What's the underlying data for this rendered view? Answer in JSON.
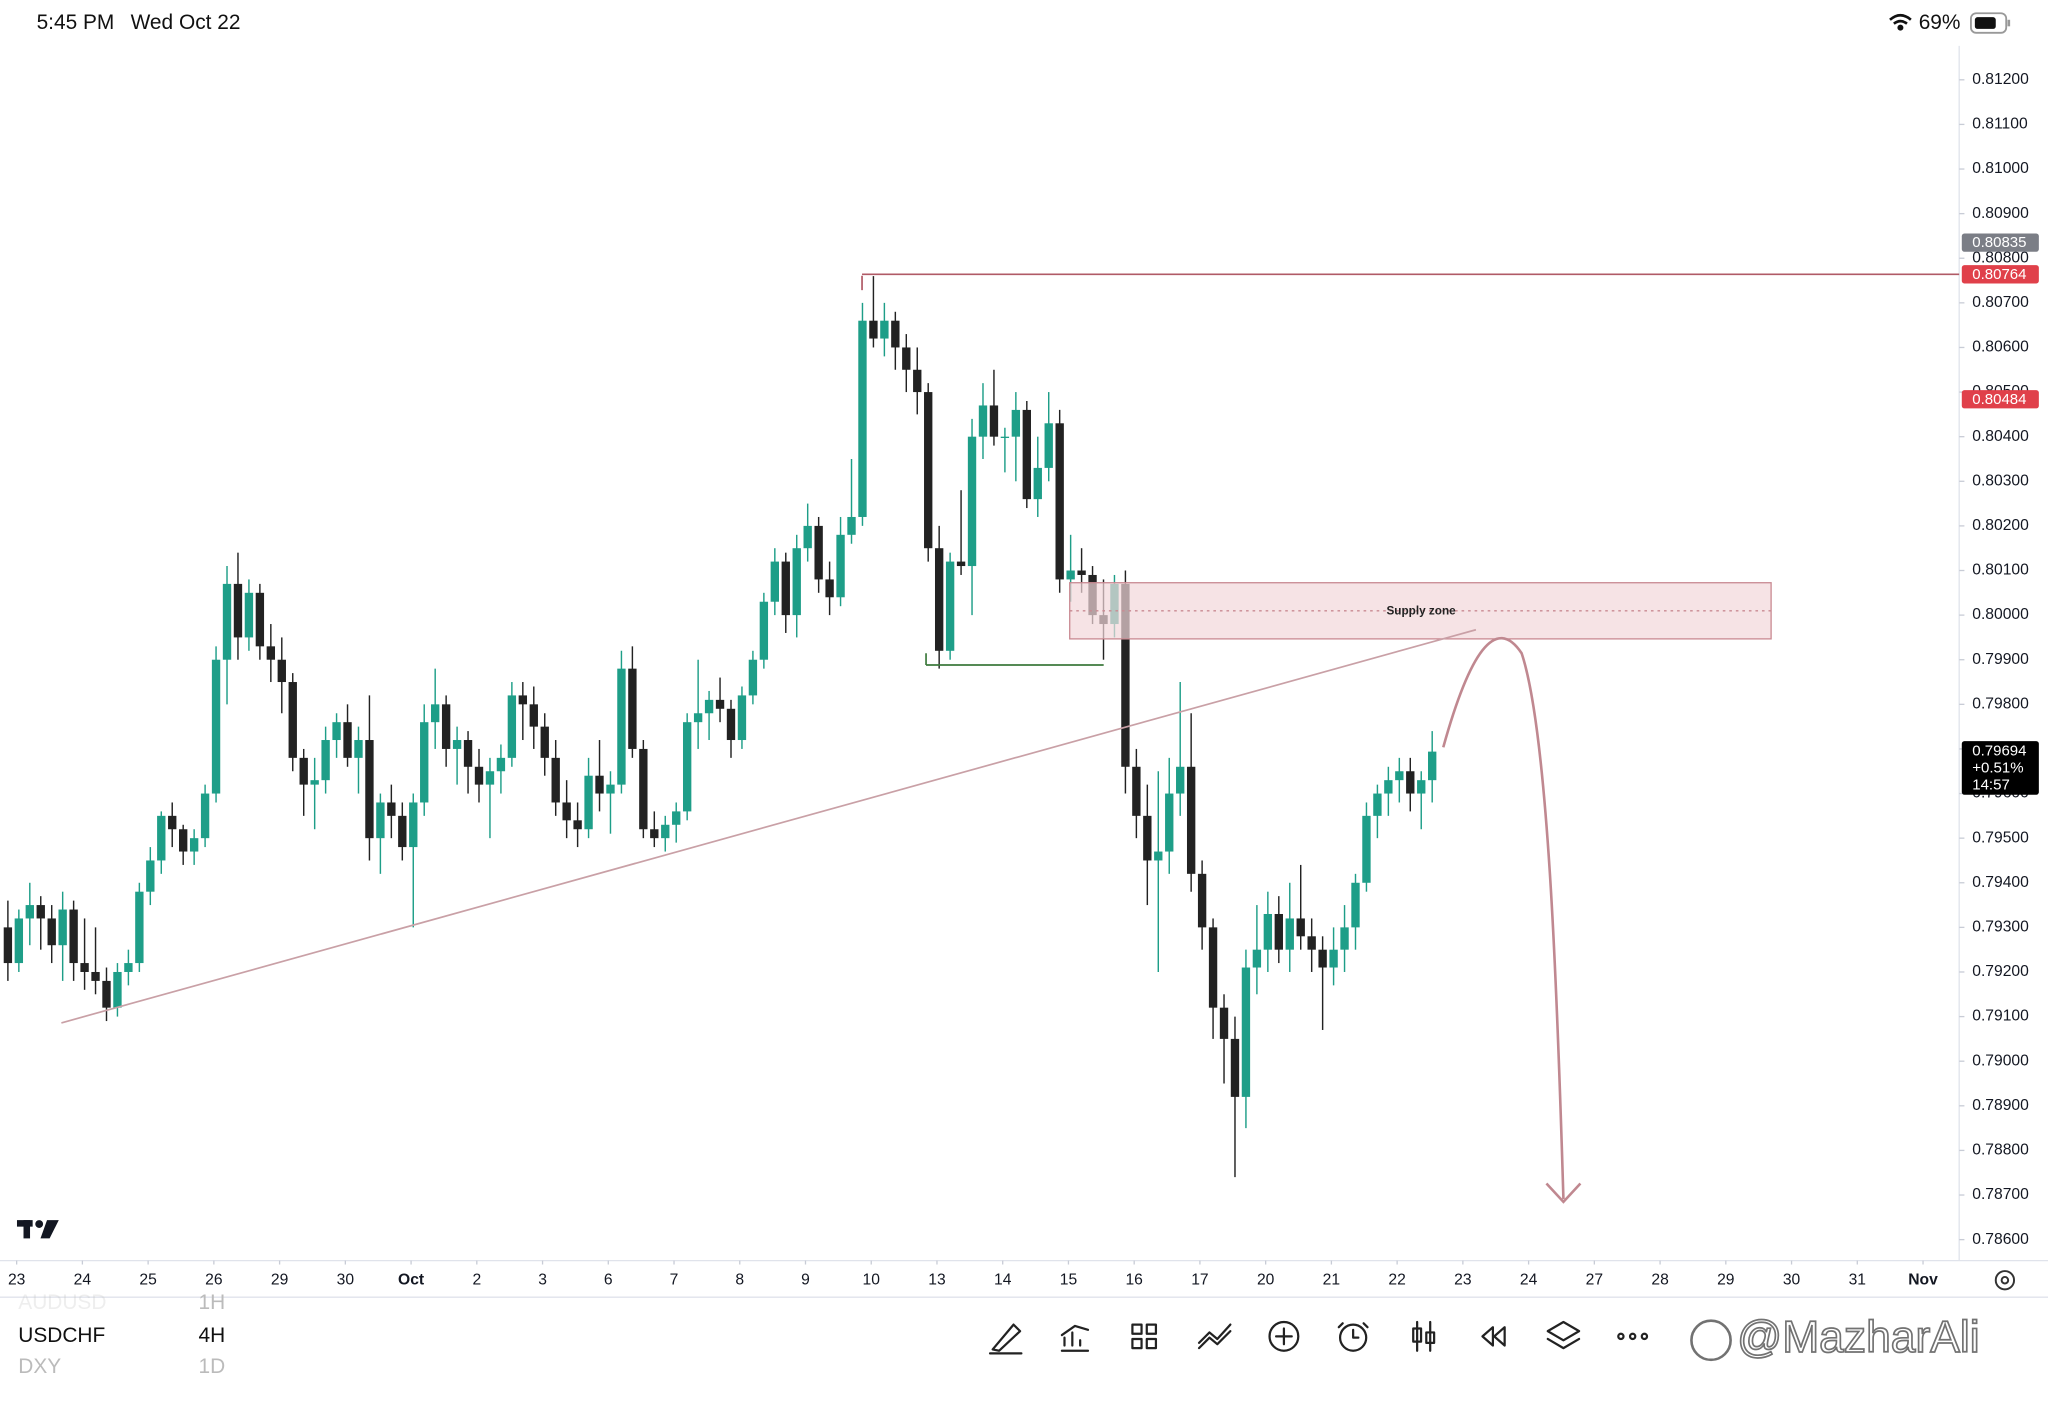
{
  "status_bar": {
    "time": "5:45 PM",
    "date": "Wed Oct 22",
    "battery": "69%"
  },
  "chart_data": {
    "type": "candlestick",
    "symbol": "USDCHF",
    "interval": "4H",
    "up_color": "#1e9e88",
    "down_color": "#222222",
    "xlim": [
      -0.72,
      178.1
    ],
    "xticks": [
      {
        "value": 0.8,
        "label": "23"
      },
      {
        "value": 6.8,
        "label": "24"
      },
      {
        "value": 12.8,
        "label": "25"
      },
      {
        "value": 18.8,
        "label": "26"
      },
      {
        "value": 24.8,
        "label": "29"
      },
      {
        "value": 30.8,
        "label": "30"
      },
      {
        "value": 36.8,
        "label": "Oct"
      },
      {
        "value": 42.8,
        "label": "2"
      },
      {
        "value": 48.8,
        "label": "3"
      },
      {
        "value": 54.8,
        "label": "6"
      },
      {
        "value": 60.8,
        "label": "7"
      },
      {
        "value": 66.8,
        "label": "8"
      },
      {
        "value": 72.8,
        "label": "9"
      },
      {
        "value": 78.8,
        "label": "10"
      },
      {
        "value": 84.8,
        "label": "13"
      },
      {
        "value": 90.8,
        "label": "14"
      },
      {
        "value": 96.8,
        "label": "15"
      },
      {
        "value": 102.8,
        "label": "16"
      },
      {
        "value": 108.8,
        "label": "17"
      },
      {
        "value": 114.8,
        "label": "20"
      },
      {
        "value": 120.8,
        "label": "21"
      },
      {
        "value": 126.8,
        "label": "22"
      },
      {
        "value": 132.8,
        "label": "23"
      },
      {
        "value": 138.8,
        "label": "24"
      },
      {
        "value": 144.8,
        "label": "27"
      },
      {
        "value": 150.8,
        "label": "28"
      },
      {
        "value": 156.8,
        "label": "29"
      },
      {
        "value": 162.8,
        "label": "30"
      },
      {
        "value": 168.8,
        "label": "31"
      },
      {
        "value": 174.8,
        "label": "Nov"
      }
    ],
    "ylim": [
      0.78553,
      0.81276
    ],
    "yticks": [
      {
        "value": 0.812,
        "label": "0.81200"
      },
      {
        "value": 0.811,
        "label": "0.81100"
      },
      {
        "value": 0.81,
        "label": "0.81000"
      },
      {
        "value": 0.809,
        "label": "0.80900"
      },
      {
        "value": 0.808,
        "label": "0.80800"
      },
      {
        "value": 0.807,
        "label": "0.80700"
      },
      {
        "value": 0.806,
        "label": "0.80600"
      },
      {
        "value": 0.805,
        "label": "0.80500"
      },
      {
        "value": 0.804,
        "label": "0.80400"
      },
      {
        "value": 0.803,
        "label": "0.80300"
      },
      {
        "value": 0.802,
        "label": "0.80200"
      },
      {
        "value": 0.801,
        "label": "0.80100"
      },
      {
        "value": 0.8,
        "label": "0.80000"
      },
      {
        "value": 0.799,
        "label": "0.79900"
      },
      {
        "value": 0.798,
        "label": "0.79800"
      },
      {
        "value": 0.797,
        "label": "0.79700"
      },
      {
        "value": 0.796,
        "label": "0.79600"
      },
      {
        "value": 0.795,
        "label": "0.79500"
      },
      {
        "value": 0.794,
        "label": "0.79400"
      },
      {
        "value": 0.793,
        "label": "0.79300"
      },
      {
        "value": 0.792,
        "label": "0.79200"
      },
      {
        "value": 0.791,
        "label": "0.79100"
      },
      {
        "value": 0.79,
        "label": "0.79000"
      },
      {
        "value": 0.789,
        "label": "0.78900"
      },
      {
        "value": 0.788,
        "label": "0.78800"
      },
      {
        "value": 0.787,
        "label": "0.78700"
      },
      {
        "value": 0.786,
        "label": "0.78600"
      }
    ],
    "price_labels": [
      {
        "value": 0.80835,
        "label": "0.80835",
        "color": "#7b7e86"
      },
      {
        "value": 0.80764,
        "label": "0.80764",
        "color": "#e0404a"
      },
      {
        "value": 0.80484,
        "label": "0.80484",
        "color": "#e0404a"
      }
    ],
    "last_price": {
      "value": 0.79694,
      "label": "0.79694",
      "change": "+0.51%",
      "countdown": "14:57",
      "color": "#000000"
    },
    "annotation": "Supply zone",
    "candles": [
      [
        0.793,
        0.7936,
        0.7918,
        0.7922
      ],
      [
        0.7922,
        0.7934,
        0.792,
        0.7932
      ],
      [
        0.7932,
        0.794,
        0.7926,
        0.7935
      ],
      [
        0.7935,
        0.7937,
        0.7925,
        0.7932
      ],
      [
        0.7932,
        0.7935,
        0.7922,
        0.7926
      ],
      [
        0.7926,
        0.7938,
        0.7918,
        0.7934
      ],
      [
        0.7934,
        0.7936,
        0.7918,
        0.7922
      ],
      [
        0.7922,
        0.7932,
        0.7916,
        0.792
      ],
      [
        0.792,
        0.793,
        0.7915,
        0.7918
      ],
      [
        0.7918,
        0.7921,
        0.7909,
        0.7912
      ],
      [
        0.7912,
        0.7922,
        0.791,
        0.792
      ],
      [
        0.792,
        0.7925,
        0.7917,
        0.7922
      ],
      [
        0.7922,
        0.794,
        0.792,
        0.7938
      ],
      [
        0.7938,
        0.7948,
        0.7935,
        0.7945
      ],
      [
        0.7945,
        0.7956,
        0.7942,
        0.7955
      ],
      [
        0.7955,
        0.7958,
        0.7948,
        0.7952
      ],
      [
        0.7952,
        0.7953,
        0.7944,
        0.7947
      ],
      [
        0.7947,
        0.7952,
        0.7944,
        0.795
      ],
      [
        0.795,
        0.7962,
        0.7948,
        0.796
      ],
      [
        0.796,
        0.7993,
        0.7958,
        0.799
      ],
      [
        0.799,
        0.8011,
        0.798,
        0.8007
      ],
      [
        0.8007,
        0.8014,
        0.799,
        0.7995
      ],
      [
        0.7995,
        0.8008,
        0.7992,
        0.8005
      ],
      [
        0.8005,
        0.8007,
        0.799,
        0.7993
      ],
      [
        0.7993,
        0.7998,
        0.7985,
        0.799
      ],
      [
        0.799,
        0.7995,
        0.7978,
        0.7985
      ],
      [
        0.7985,
        0.7987,
        0.7965,
        0.7968
      ],
      [
        0.7968,
        0.797,
        0.7955,
        0.7962
      ],
      [
        0.7962,
        0.7968,
        0.7952,
        0.7963
      ],
      [
        0.7963,
        0.7975,
        0.796,
        0.7972
      ],
      [
        0.7972,
        0.7978,
        0.7968,
        0.7976
      ],
      [
        0.7976,
        0.798,
        0.7966,
        0.7968
      ],
      [
        0.7968,
        0.7975,
        0.796,
        0.7972
      ],
      [
        0.7972,
        0.7982,
        0.7945,
        0.795
      ],
      [
        0.795,
        0.796,
        0.7942,
        0.7958
      ],
      [
        0.7958,
        0.7962,
        0.795,
        0.7955
      ],
      [
        0.7955,
        0.7958,
        0.7945,
        0.7948
      ],
      [
        0.7948,
        0.796,
        0.793,
        0.7958
      ],
      [
        0.7958,
        0.798,
        0.7955,
        0.7976
      ],
      [
        0.7976,
        0.7988,
        0.797,
        0.798
      ],
      [
        0.798,
        0.7982,
        0.7966,
        0.797
      ],
      [
        0.797,
        0.7975,
        0.7962,
        0.7972
      ],
      [
        0.7972,
        0.7974,
        0.796,
        0.7966
      ],
      [
        0.7966,
        0.797,
        0.7958,
        0.7962
      ],
      [
        0.7962,
        0.7968,
        0.795,
        0.7965
      ],
      [
        0.7965,
        0.7971,
        0.796,
        0.7968
      ],
      [
        0.7968,
        0.7985,
        0.7966,
        0.7982
      ],
      [
        0.7982,
        0.7985,
        0.7972,
        0.798
      ],
      [
        0.798,
        0.7984,
        0.797,
        0.7975
      ],
      [
        0.7975,
        0.7978,
        0.7964,
        0.7968
      ],
      [
        0.7968,
        0.7972,
        0.7955,
        0.7958
      ],
      [
        0.7958,
        0.7963,
        0.795,
        0.7954
      ],
      [
        0.7954,
        0.7958,
        0.7948,
        0.7952
      ],
      [
        0.7952,
        0.7968,
        0.795,
        0.7964
      ],
      [
        0.7964,
        0.7972,
        0.7956,
        0.796
      ],
      [
        0.796,
        0.7965,
        0.7951,
        0.7962
      ],
      [
        0.7962,
        0.7992,
        0.796,
        0.7988
      ],
      [
        0.7988,
        0.7993,
        0.7968,
        0.797
      ],
      [
        0.797,
        0.7972,
        0.795,
        0.7952
      ],
      [
        0.7952,
        0.7956,
        0.7948,
        0.795
      ],
      [
        0.795,
        0.7955,
        0.7947,
        0.7953
      ],
      [
        0.7953,
        0.7958,
        0.7949,
        0.7956
      ],
      [
        0.7956,
        0.7978,
        0.7954,
        0.7976
      ],
      [
        0.7976,
        0.799,
        0.797,
        0.7978
      ],
      [
        0.7978,
        0.7983,
        0.7972,
        0.7981
      ],
      [
        0.7981,
        0.7986,
        0.7976,
        0.7979
      ],
      [
        0.7979,
        0.7981,
        0.7968,
        0.7972
      ],
      [
        0.7972,
        0.7984,
        0.797,
        0.7982
      ],
      [
        0.7982,
        0.7992,
        0.798,
        0.799
      ],
      [
        0.799,
        0.8005,
        0.7988,
        0.8003
      ],
      [
        0.8003,
        0.8015,
        0.8,
        0.8012
      ],
      [
        0.8012,
        0.8014,
        0.7996,
        0.8
      ],
      [
        0.8,
        0.8018,
        0.7995,
        0.8015
      ],
      [
        0.8015,
        0.8025,
        0.8012,
        0.802
      ],
      [
        0.802,
        0.8022,
        0.8005,
        0.8008
      ],
      [
        0.8008,
        0.8012,
        0.8,
        0.8004
      ],
      [
        0.8004,
        0.8022,
        0.8002,
        0.8018
      ],
      [
        0.8018,
        0.8035,
        0.8016,
        0.8022
      ],
      [
        0.8022,
        0.807,
        0.802,
        0.8066
      ],
      [
        0.8066,
        0.8076,
        0.806,
        0.8062
      ],
      [
        0.8062,
        0.807,
        0.8058,
        0.8066
      ],
      [
        0.8066,
        0.8068,
        0.8055,
        0.806
      ],
      [
        0.806,
        0.8063,
        0.805,
        0.8055
      ],
      [
        0.8055,
        0.806,
        0.8045,
        0.805
      ],
      [
        0.805,
        0.8052,
        0.8012,
        0.8015
      ],
      [
        0.8015,
        0.802,
        0.7988,
        0.7992
      ],
      [
        0.7992,
        0.8014,
        0.799,
        0.8012
      ],
      [
        0.8012,
        0.8028,
        0.8009,
        0.8011
      ],
      [
        0.8011,
        0.8044,
        0.8,
        0.804
      ],
      [
        0.804,
        0.8052,
        0.8035,
        0.8047
      ],
      [
        0.8047,
        0.8055,
        0.8038,
        0.804
      ],
      [
        0.804,
        0.8042,
        0.8032,
        0.804
      ],
      [
        0.804,
        0.805,
        0.803,
        0.8046
      ],
      [
        0.8046,
        0.8048,
        0.8024,
        0.8026
      ],
      [
        0.8026,
        0.804,
        0.8022,
        0.8033
      ],
      [
        0.8033,
        0.805,
        0.803,
        0.8043
      ],
      [
        0.8043,
        0.8046,
        0.8005,
        0.8008
      ],
      [
        0.8008,
        0.8018,
        0.8003,
        0.801
      ],
      [
        0.801,
        0.8015,
        0.8005,
        0.8009
      ],
      [
        0.8009,
        0.8011,
        0.7998,
        0.8
      ],
      [
        0.8,
        0.8008,
        0.799,
        0.7998
      ],
      [
        0.7998,
        0.8009,
        0.7995,
        0.8007
      ],
      [
        0.8007,
        0.801,
        0.796,
        0.7966
      ],
      [
        0.7966,
        0.797,
        0.795,
        0.7955
      ],
      [
        0.7955,
        0.7962,
        0.7935,
        0.7945
      ],
      [
        0.7945,
        0.7965,
        0.792,
        0.7947
      ],
      [
        0.7947,
        0.7968,
        0.7942,
        0.796
      ],
      [
        0.796,
        0.7985,
        0.7955,
        0.7966
      ],
      [
        0.7966,
        0.7978,
        0.7938,
        0.7942
      ],
      [
        0.7942,
        0.7945,
        0.7925,
        0.793
      ],
      [
        0.793,
        0.7932,
        0.7905,
        0.7912
      ],
      [
        0.7912,
        0.7915,
        0.7895,
        0.7905
      ],
      [
        0.7905,
        0.791,
        0.7874,
        0.7892
      ],
      [
        0.7892,
        0.7925,
        0.7885,
        0.7921
      ],
      [
        0.7921,
        0.7935,
        0.7915,
        0.7925
      ],
      [
        0.7925,
        0.7938,
        0.792,
        0.7933
      ],
      [
        0.7933,
        0.7937,
        0.7922,
        0.7925
      ],
      [
        0.7925,
        0.794,
        0.792,
        0.7932
      ],
      [
        0.7932,
        0.7944,
        0.7925,
        0.7928
      ],
      [
        0.7928,
        0.7932,
        0.792,
        0.7925
      ],
      [
        0.7925,
        0.7928,
        0.7907,
        0.7921
      ],
      [
        0.7921,
        0.793,
        0.7917,
        0.7925
      ],
      [
        0.7925,
        0.7935,
        0.792,
        0.793
      ],
      [
        0.793,
        0.7942,
        0.7925,
        0.794
      ],
      [
        0.794,
        0.7958,
        0.7938,
        0.7955
      ],
      [
        0.7955,
        0.7962,
        0.795,
        0.796
      ],
      [
        0.796,
        0.7966,
        0.7955,
        0.7963
      ],
      [
        0.7963,
        0.7968,
        0.7958,
        0.7965
      ],
      [
        0.7965,
        0.7968,
        0.7956,
        0.796
      ],
      [
        0.796,
        0.7965,
        0.7952,
        0.7963
      ],
      [
        0.7963,
        0.7974,
        0.7958,
        0.79694
      ]
    ]
  },
  "symbols": [
    {
      "symbol": "AUDUSD",
      "interval": "1H"
    },
    {
      "symbol": "USDCHF",
      "interval": "4H"
    },
    {
      "symbol": "DXY",
      "interval": "1D"
    }
  ],
  "watermark": "@MazharAli"
}
